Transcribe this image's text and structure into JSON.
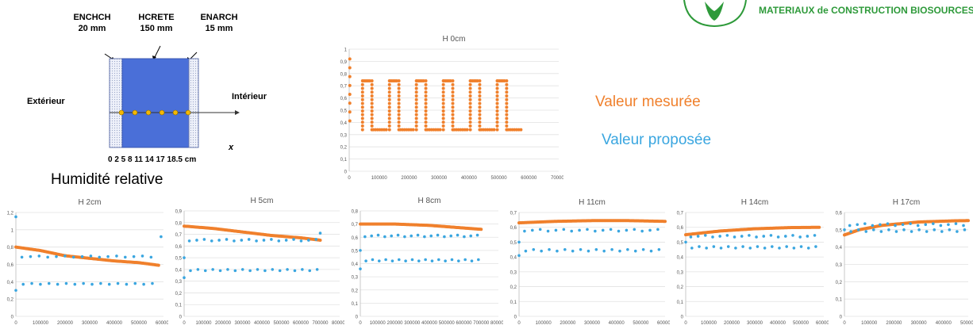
{
  "header": {
    "brand": "MATERIAUX de CONSTRUCTION BIOSOURCES"
  },
  "diagram": {
    "layers": [
      {
        "name": "ENCHCH",
        "thickness": "20 mm"
      },
      {
        "name": "HCRETE",
        "thickness": "150 mm"
      },
      {
        "name": "ENARCH",
        "thickness": "15 mm"
      }
    ],
    "left_label": "Extérieur",
    "right_label": "Intérieur",
    "axis_label": "x",
    "positions": "0  2  5  8  11  14  17  18.5 cm",
    "colors": {
      "core": "#4a6fd8",
      "edge": "#dde3f2",
      "sensor": "#f5b800"
    }
  },
  "title": "Humidité relative",
  "legend": {
    "measured": "Valeur mesurée",
    "proposed": "Valeur proposée",
    "measured_color": "#f0802c",
    "proposed_color": "#3aa6e0"
  },
  "chart_data": [
    {
      "type": "scatter",
      "title": "H 0cm",
      "xlim": [
        0,
        700000
      ],
      "ylim": [
        0,
        1
      ],
      "xticks": [
        "0",
        "100000",
        "200000",
        "300000",
        "400000",
        "500000",
        "600000",
        "700000"
      ],
      "yticks": [
        "0",
        "0,1",
        "0,2",
        "0,3",
        "0,4",
        "0,5",
        "0,6",
        "0,7",
        "0,8",
        "0,9",
        "1"
      ],
      "series": [
        {
          "color": "#f0802c",
          "pattern": "cycles",
          "start": 0.92,
          "low": 0.34,
          "high": 0.74,
          "cycles": 6,
          "x_end": 580000
        }
      ]
    },
    {
      "type": "scatter",
      "title": "H 2cm",
      "xlim": [
        0,
        600000
      ],
      "ylim": [
        0,
        1.2
      ],
      "xticks": [
        "0",
        "100000",
        "200000",
        "300000",
        "400000",
        "500000",
        "600000"
      ],
      "yticks": [
        "0",
        "0,2",
        "0,4",
        "0,6",
        "0,8",
        "1",
        "1,2"
      ],
      "series": [
        {
          "color": "#f0802c",
          "pattern": "trend",
          "points": [
            [
              0,
              0.8
            ],
            [
              100000,
              0.76
            ],
            [
              200000,
              0.7
            ],
            [
              300000,
              0.67
            ],
            [
              400000,
              0.64
            ],
            [
              500000,
              0.62
            ],
            [
              580000,
              0.59
            ]
          ]
        },
        {
          "color": "#3aa6e0",
          "pattern": "pairs",
          "low": 0.37,
          "high": 0.69,
          "n": 16,
          "x_end": 560000,
          "extra": [
            [
              0,
              1.15
            ],
            [
              0,
              0.3
            ],
            [
              590000,
              0.92
            ]
          ]
        }
      ]
    },
    {
      "type": "scatter",
      "title": "H 5cm",
      "xlim": [
        0,
        800000
      ],
      "ylim": [
        0,
        0.9
      ],
      "xticks": [
        "0",
        "100000",
        "200000",
        "300000",
        "400000",
        "500000",
        "600000",
        "700000",
        "800000"
      ],
      "yticks": [
        "0",
        "0,1",
        "0,2",
        "0,3",
        "0,4",
        "0,5",
        "0,6",
        "0,7",
        "0,8",
        "0,9"
      ],
      "series": [
        {
          "color": "#f0802c",
          "pattern": "trend",
          "points": [
            [
              0,
              0.77
            ],
            [
              150000,
              0.75
            ],
            [
              300000,
              0.72
            ],
            [
              450000,
              0.69
            ],
            [
              600000,
              0.67
            ],
            [
              700000,
              0.65
            ]
          ]
        },
        {
          "color": "#3aa6e0",
          "pattern": "pairs",
          "low": 0.39,
          "high": 0.65,
          "n": 18,
          "x_end": 690000,
          "extra": [
            [
              0,
              0.5
            ],
            [
              0,
              0.33
            ],
            [
              700000,
              0.71
            ]
          ]
        }
      ]
    },
    {
      "type": "scatter",
      "title": "H 8cm",
      "xlim": [
        0,
        800000
      ],
      "ylim": [
        0,
        0.8
      ],
      "xticks": [
        "0",
        "100000",
        "200000",
        "300000",
        "400000",
        "500000",
        "600000",
        "700000",
        "800000"
      ],
      "yticks": [
        "0",
        "0,1",
        "0,2",
        "0,3",
        "0,4",
        "0,5",
        "0,6",
        "0,7",
        "0,8"
      ],
      "series": [
        {
          "color": "#f0802c",
          "pattern": "trend",
          "points": [
            [
              0,
              0.7
            ],
            [
              200000,
              0.7
            ],
            [
              400000,
              0.69
            ],
            [
              600000,
              0.67
            ],
            [
              700000,
              0.66
            ]
          ]
        },
        {
          "color": "#3aa6e0",
          "pattern": "pairs",
          "low": 0.42,
          "high": 0.61,
          "n": 18,
          "x_end": 690000,
          "extra": [
            [
              0,
              0.5
            ],
            [
              0,
              0.36
            ]
          ]
        }
      ]
    },
    {
      "type": "scatter",
      "title": "H 11cm",
      "xlim": [
        0,
        600000
      ],
      "ylim": [
        0,
        0.7
      ],
      "xticks": [
        "0",
        "100000",
        "200000",
        "300000",
        "400000",
        "500000",
        "600000"
      ],
      "yticks": [
        "0",
        "0,1",
        "0,2",
        "0,3",
        "0,4",
        "0,5",
        "0,6",
        "0,7"
      ],
      "series": [
        {
          "color": "#f0802c",
          "pattern": "trend",
          "points": [
            [
              0,
              0.63
            ],
            [
              150000,
              0.64
            ],
            [
              300000,
              0.645
            ],
            [
              450000,
              0.645
            ],
            [
              600000,
              0.64
            ]
          ]
        },
        {
          "color": "#3aa6e0",
          "pattern": "pairs",
          "low": 0.44,
          "high": 0.58,
          "n": 18,
          "x_end": 580000,
          "extra": [
            [
              0,
              0.5
            ],
            [
              0,
              0.41
            ]
          ]
        }
      ]
    },
    {
      "type": "scatter",
      "title": "H 14cm",
      "xlim": [
        0,
        600000
      ],
      "ylim": [
        0,
        0.7
      ],
      "xticks": [
        "0",
        "100000",
        "200000",
        "300000",
        "400000",
        "500000",
        "600000"
      ],
      "yticks": [
        "0",
        "0,1",
        "0,2",
        "0,3",
        "0,4",
        "0,5",
        "0,6",
        "0,7"
      ],
      "series": [
        {
          "color": "#f0802c",
          "pattern": "trend",
          "points": [
            [
              0,
              0.55
            ],
            [
              150000,
              0.575
            ],
            [
              300000,
              0.59
            ],
            [
              450000,
              0.598
            ],
            [
              580000,
              0.6
            ]
          ]
        },
        {
          "color": "#3aa6e0",
          "pattern": "pairs",
          "low": 0.46,
          "high": 0.54,
          "n": 18,
          "x_end": 570000,
          "extra": [
            [
              0,
              0.5
            ]
          ]
        }
      ]
    },
    {
      "type": "scatter",
      "title": "H 17cm",
      "xlim": [
        0,
        500000
      ],
      "ylim": [
        0,
        0.6
      ],
      "xticks": [
        "0",
        "100000",
        "200000",
        "300000",
        "400000",
        "500000"
      ],
      "yticks": [
        "0",
        "0,1",
        "0,2",
        "0,3",
        "0,4",
        "0,5",
        "0,6"
      ],
      "series": [
        {
          "color": "#f0802c",
          "pattern": "trend",
          "points": [
            [
              0,
              0.47
            ],
            [
              60000,
              0.5
            ],
            [
              150000,
              0.525
            ],
            [
              300000,
              0.545
            ],
            [
              450000,
              0.552
            ],
            [
              500000,
              0.553
            ]
          ]
        },
        {
          "color": "#3aa6e0",
          "pattern": "pairs",
          "low": 0.49,
          "high": 0.53,
          "n": 16,
          "x_end": 490000,
          "extra": [
            [
              0,
              0.5
            ]
          ]
        }
      ]
    }
  ]
}
